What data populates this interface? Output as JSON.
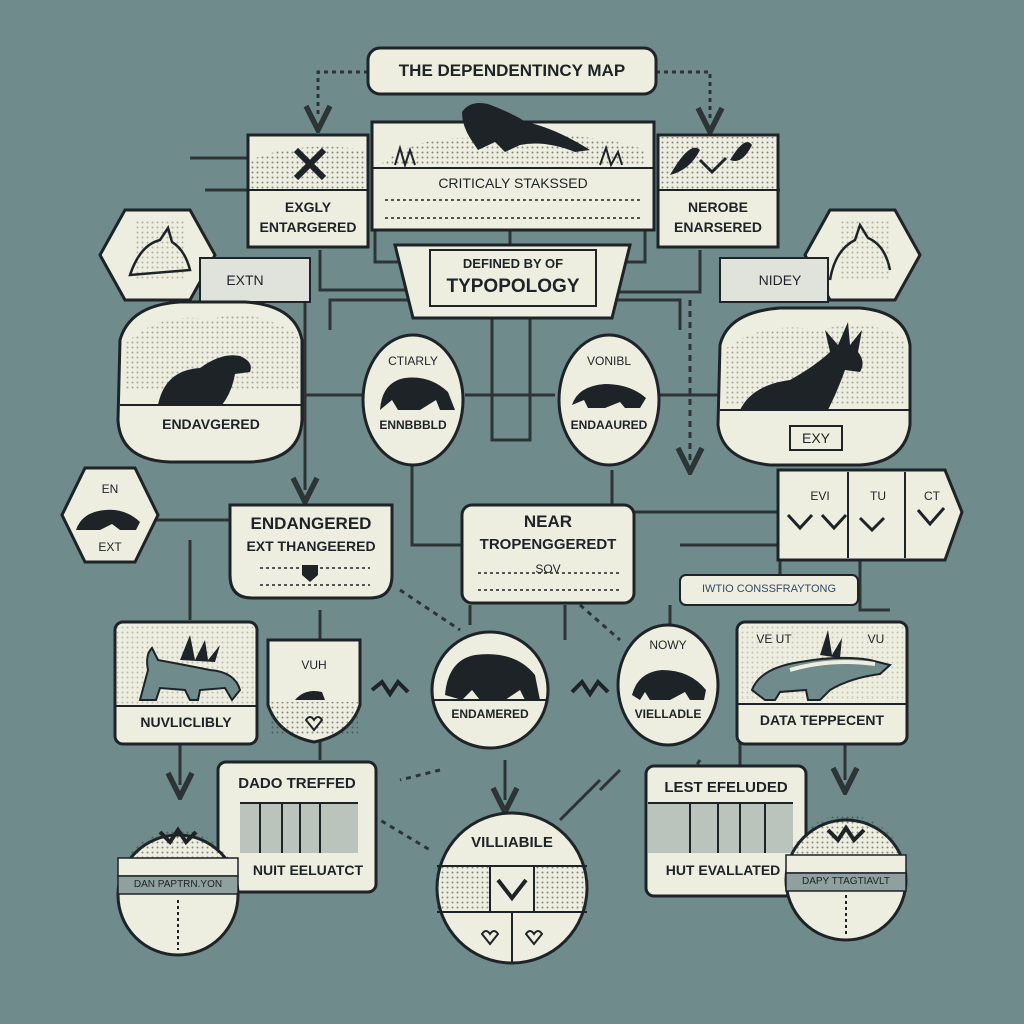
{
  "title": "THE DEPENDENTINCY MAP",
  "colors": {
    "background": "#6f8b8c",
    "panel": "#eeeee0",
    "ink": "#1d2326",
    "line": "#2c3436"
  },
  "top_row": {
    "left_card": {
      "line1": "EXGLY",
      "line2": "ENTARGERED",
      "icon": "x-mark-icon"
    },
    "center_card": {
      "label": "CRITICALY STAKSSED",
      "icon": "otter-silhouette-icon"
    },
    "right_card": {
      "line1": "NEROBE",
      "line2": "ENARSERED",
      "icon": "leaf-icon"
    }
  },
  "hub": {
    "line1": "DEFINED BY OF",
    "line2": "TYPOPOLOGY"
  },
  "side_tags": {
    "left": "EXTN",
    "right": "NIDEY"
  },
  "circles_row2": {
    "left": "CTIARLY",
    "left_sub": "ENNBBBLD",
    "right": "VONIBL",
    "right_sub": "ENDAAURED"
  },
  "scenes": {
    "left": "ENDAVGERED",
    "right": "EXY"
  },
  "left_hex": {
    "line1": "EN",
    "line2": "EXT"
  },
  "mid_cards": {
    "left": {
      "line1": "ENDANGERED",
      "line2": "EXT THANGEERED"
    },
    "right": {
      "line1": "NEAR",
      "line2": "TROPENGGEREDT",
      "sub": "SOV"
    }
  },
  "right_strip": {
    "items": [
      "EVI",
      "TU",
      "CT"
    ]
  },
  "right_banner": "IWTIO CONSSFRAYTONG",
  "row4": {
    "left_card": "NUVLICLIBLY",
    "shield": "VUH",
    "center_circle": "ENDAMERED",
    "right_circle_top": "NOWY",
    "right_circle": "VIELLADLE",
    "right_card_top_left": "VE UT",
    "right_card_top_right": "VU",
    "right_card": "DATA TEPPECENT"
  },
  "bottom": {
    "left_box": {
      "title": "DADO TREFFED",
      "sub": "NUIT EELUATCT"
    },
    "left_dial": "DAN PAPTRN.YON",
    "center_dial": "VILLIABILE",
    "right_box": {
      "title": "LEST EFELUDED",
      "sub": "HUT EVALLATED"
    },
    "right_dial": "DAPY TTAGTIAVLT"
  }
}
